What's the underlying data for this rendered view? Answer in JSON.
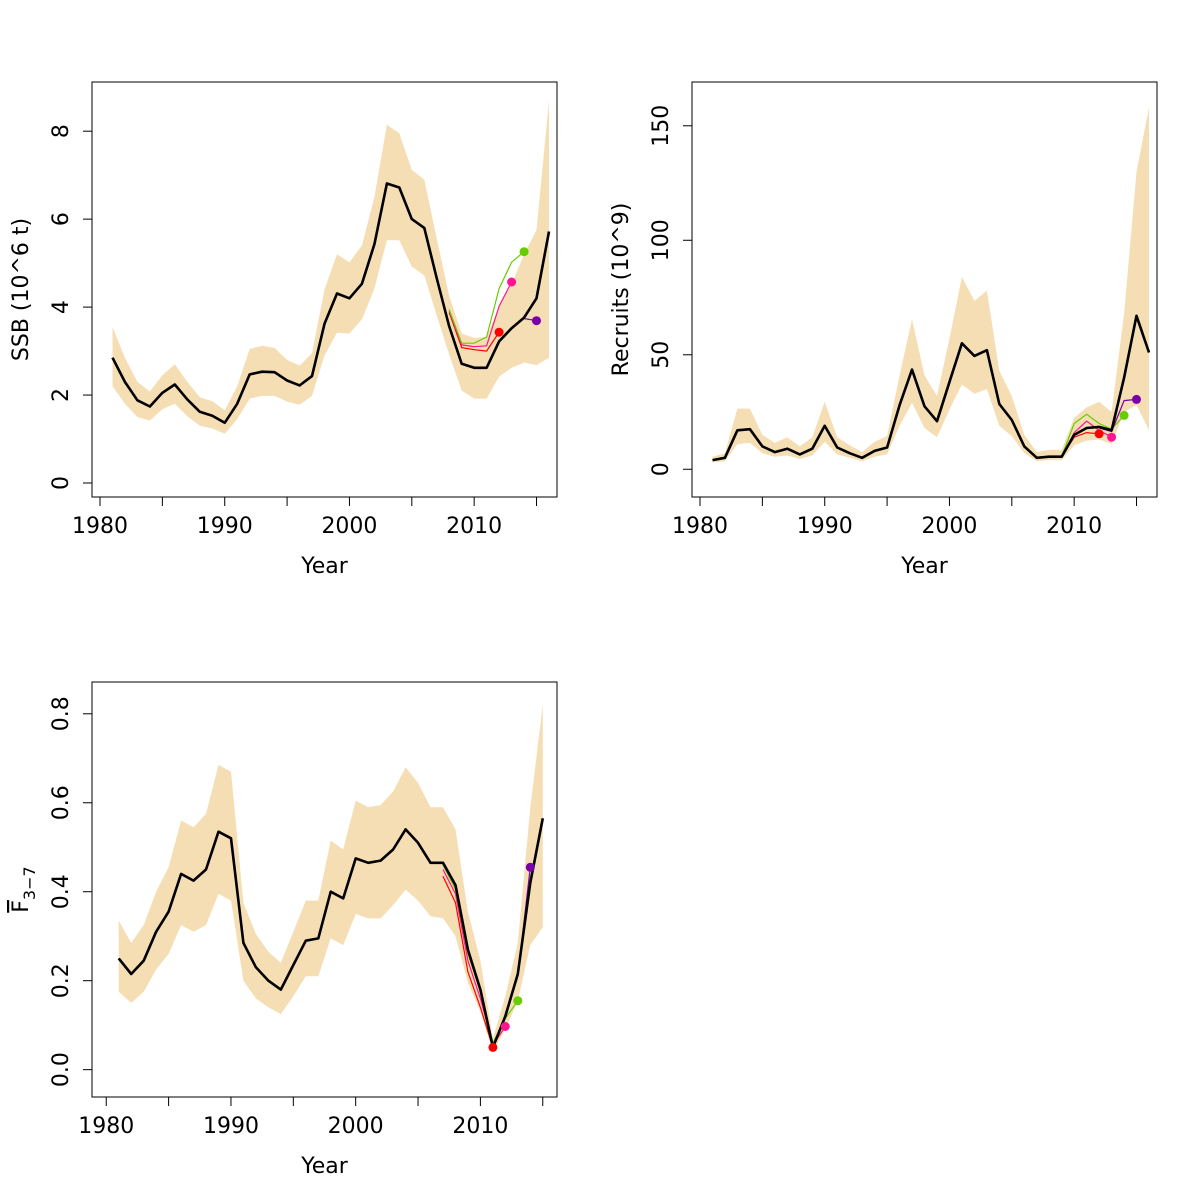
{
  "colors": {
    "band": "#f5deb3",
    "final": "#000000",
    "retro": [
      "#ff0000",
      "#ff1493",
      "#66cd00",
      "#7a00aa"
    ],
    "retro_names": [
      "red",
      "deeppink",
      "chartreuse",
      "purple"
    ]
  },
  "chart_data": [
    {
      "type": "line",
      "ylabel": "SSB (10^6 t)",
      "xlabel": "Year",
      "xlim": [
        1980,
        2016
      ],
      "ylim": [
        0,
        8.8
      ],
      "xticks": [
        1980,
        1990,
        2000,
        2010
      ],
      "yticks": [
        0,
        2,
        4,
        6,
        8
      ],
      "grid": false,
      "legend": "none",
      "x": [
        1981,
        1982,
        1983,
        1984,
        1985,
        1986,
        1987,
        1988,
        1989,
        1990,
        1991,
        1992,
        1993,
        1994,
        1995,
        1996,
        1997,
        1998,
        1999,
        2000,
        2001,
        2002,
        2003,
        2004,
        2005,
        2006,
        2007,
        2008,
        2009,
        2010,
        2011,
        2012,
        2013,
        2014,
        2015,
        2016
      ],
      "final": [
        2.85,
        2.3,
        1.88,
        1.74,
        2.05,
        2.24,
        1.9,
        1.62,
        1.53,
        1.37,
        1.8,
        2.47,
        2.53,
        2.52,
        2.33,
        2.22,
        2.43,
        3.62,
        4.31,
        4.2,
        4.53,
        5.43,
        6.81,
        6.72,
        6.0,
        5.8,
        4.65,
        3.56,
        2.71,
        2.62,
        2.62,
        3.22,
        3.52,
        3.76,
        4.2,
        5.72
      ],
      "band_lower": [
        2.2,
        1.8,
        1.5,
        1.42,
        1.68,
        1.8,
        1.52,
        1.3,
        1.24,
        1.12,
        1.45,
        1.92,
        1.98,
        1.98,
        1.85,
        1.78,
        1.98,
        2.9,
        3.42,
        3.4,
        3.72,
        4.42,
        5.52,
        5.52,
        4.92,
        4.72,
        3.8,
        2.92,
        2.1,
        1.92,
        1.92,
        2.42,
        2.62,
        2.74,
        2.68,
        2.85
      ],
      "band_upper": [
        3.55,
        2.85,
        2.3,
        2.08,
        2.45,
        2.7,
        2.3,
        1.95,
        1.86,
        1.65,
        2.2,
        3.05,
        3.12,
        3.07,
        2.8,
        2.67,
        2.95,
        4.4,
        5.2,
        5.02,
        5.4,
        6.5,
        8.15,
        7.95,
        7.12,
        6.9,
        5.55,
        4.25,
        3.4,
        3.3,
        3.32,
        4.02,
        4.52,
        5.2,
        5.75,
        8.7
      ],
      "retro_runs": [
        {
          "x": [
            2008,
            2009,
            2010,
            2011,
            2012
          ],
          "y": [
            3.88,
            3.08,
            3.03,
            3.0,
            3.43
          ],
          "end_marker": true
        },
        {
          "x": [
            2008,
            2009,
            2010,
            2011,
            2012,
            2013
          ],
          "y": [
            3.92,
            3.14,
            3.1,
            3.12,
            4.02,
            4.57
          ],
          "end_marker": true
        },
        {
          "x": [
            2008,
            2009,
            2010,
            2011,
            2012,
            2013,
            2014
          ],
          "y": [
            3.94,
            3.18,
            3.18,
            3.32,
            4.42,
            5.02,
            5.26
          ],
          "end_marker": true
        },
        {
          "x": [
            2013,
            2014,
            2015
          ],
          "y": [
            3.53,
            3.74,
            3.69
          ],
          "end_marker": true
        }
      ]
    },
    {
      "type": "line",
      "ylabel": "Recruits (10^9)",
      "xlabel": "Year",
      "xlim": [
        1980,
        2016
      ],
      "ylim": [
        -6,
        163
      ],
      "xticks": [
        1980,
        1990,
        2000,
        2010
      ],
      "yticks": [
        0,
        50,
        100,
        150
      ],
      "grid": false,
      "legend": "none",
      "x": [
        1981,
        1982,
        1983,
        1984,
        1985,
        1986,
        1987,
        1988,
        1989,
        1990,
        1991,
        1992,
        1993,
        1994,
        1995,
        1996,
        1997,
        1998,
        1999,
        2000,
        2001,
        2002,
        2003,
        2004,
        2005,
        2006,
        2007,
        2008,
        2009,
        2010,
        2011,
        2012,
        2013,
        2014,
        2015,
        2016
      ],
      "final": [
        4.0,
        5.0,
        17.0,
        17.5,
        10.0,
        7.5,
        9.0,
        6.5,
        9.0,
        19.0,
        9.5,
        7.0,
        5.0,
        8.0,
        9.5,
        28.0,
        43.5,
        27.5,
        21.0,
        38.0,
        55.0,
        49.5,
        52.0,
        28.5,
        21.5,
        10.0,
        5.0,
        5.5,
        5.5,
        15.0,
        18.0,
        18.5,
        17.0,
        40.0,
        67.0,
        51.0
      ],
      "band_lower": [
        3.0,
        3.5,
        11.0,
        11.5,
        7.0,
        5.5,
        6.0,
        4.5,
        6.0,
        12.0,
        6.5,
        5.0,
        3.5,
        5.5,
        6.5,
        19.0,
        29.0,
        18.0,
        14.0,
        26.0,
        37.0,
        33.0,
        35.0,
        19.0,
        14.5,
        7.0,
        3.5,
        4.0,
        4.0,
        10.5,
        12.5,
        13.0,
        11.0,
        25.0,
        28.0,
        17.0
      ],
      "band_upper": [
        5.5,
        7.0,
        26.5,
        26.5,
        15.0,
        11.5,
        14.0,
        10.0,
        14.0,
        29.5,
        14.0,
        10.5,
        7.5,
        12.0,
        14.5,
        41.0,
        65.5,
        41.0,
        32.0,
        57.0,
        84.0,
        73.5,
        78.0,
        43.0,
        32.0,
        15.0,
        7.5,
        8.5,
        8.5,
        22.5,
        27.0,
        29.5,
        25.0,
        68.0,
        130.0,
        158.0
      ],
      "retro_runs": [
        {
          "x": [
            2009,
            2010,
            2011,
            2012
          ],
          "y": [
            5.5,
            14.0,
            16.0,
            15.5
          ],
          "end_marker": true
        },
        {
          "x": [
            2009,
            2010,
            2011,
            2012,
            2013
          ],
          "y": [
            5.5,
            16.0,
            21.0,
            17.0,
            14.0
          ],
          "end_marker": true
        },
        {
          "x": [
            2009,
            2010,
            2011,
            2012,
            2013,
            2014
          ],
          "y": [
            5.6,
            20.0,
            24.0,
            20.0,
            17.5,
            23.5
          ],
          "end_marker": true
        },
        {
          "x": [
            2012,
            2013,
            2014,
            2015
          ],
          "y": [
            18.0,
            16.5,
            30.0,
            30.5
          ],
          "end_marker": true
        }
      ]
    },
    {
      "type": "line",
      "ylabel": "F",
      "ylabel_sub": "3−7",
      "xlabel": "Year",
      "xlim": [
        1980,
        2015
      ],
      "ylim": [
        -0.03,
        0.84
      ],
      "xticks": [
        1980,
        1990,
        2000,
        2010
      ],
      "yticks": [
        0.0,
        0.2,
        0.4,
        0.6,
        0.8
      ],
      "ytick_labels": [
        "0.0",
        "0.2",
        "0.4",
        "0.6",
        "0.8"
      ],
      "grid": false,
      "legend": "none",
      "x": [
        1981,
        1982,
        1983,
        1984,
        1985,
        1986,
        1987,
        1988,
        1989,
        1990,
        1991,
        1992,
        1993,
        1994,
        1995,
        1996,
        1997,
        1998,
        1999,
        2000,
        2001,
        2002,
        2003,
        2004,
        2005,
        2006,
        2007,
        2008,
        2009,
        2010,
        2011,
        2012,
        2013,
        2014,
        2015
      ],
      "final": [
        0.25,
        0.215,
        0.245,
        0.31,
        0.355,
        0.44,
        0.425,
        0.45,
        0.535,
        0.52,
        0.285,
        0.23,
        0.2,
        0.18,
        0.235,
        0.29,
        0.295,
        0.4,
        0.385,
        0.475,
        0.465,
        0.47,
        0.495,
        0.54,
        0.51,
        0.465,
        0.465,
        0.415,
        0.27,
        0.18,
        0.05,
        0.12,
        0.215,
        0.42,
        0.565
      ],
      "band_lower": [
        0.175,
        0.15,
        0.175,
        0.225,
        0.26,
        0.325,
        0.31,
        0.325,
        0.395,
        0.38,
        0.2,
        0.16,
        0.14,
        0.125,
        0.165,
        0.21,
        0.21,
        0.295,
        0.28,
        0.35,
        0.34,
        0.34,
        0.37,
        0.405,
        0.38,
        0.345,
        0.34,
        0.3,
        0.195,
        0.13,
        0.04,
        0.09,
        0.155,
        0.28,
        0.32
      ],
      "band_upper": [
        0.335,
        0.285,
        0.325,
        0.4,
        0.455,
        0.56,
        0.545,
        0.575,
        0.685,
        0.67,
        0.375,
        0.305,
        0.265,
        0.24,
        0.31,
        0.38,
        0.38,
        0.515,
        0.495,
        0.605,
        0.59,
        0.595,
        0.625,
        0.68,
        0.645,
        0.59,
        0.59,
        0.54,
        0.355,
        0.245,
        0.07,
        0.165,
        0.285,
        0.59,
        0.82
      ],
      "retro_runs": [
        {
          "x": [
            2007,
            2008,
            2009,
            2010,
            2011
          ],
          "y": [
            0.435,
            0.375,
            0.22,
            0.14,
            0.05
          ],
          "end_marker": true
        },
        {
          "x": [
            2007,
            2008,
            2009,
            2010,
            2011,
            2012
          ],
          "y": [
            0.45,
            0.395,
            0.245,
            0.16,
            0.055,
            0.097
          ],
          "end_marker": true
        },
        {
          "x": [
            2007,
            2008,
            2009,
            2010,
            2011,
            2012,
            2013
          ],
          "y": [
            0.46,
            0.405,
            0.26,
            0.175,
            0.06,
            0.115,
            0.155
          ],
          "end_marker": true
        },
        {
          "x": [
            2012,
            2013,
            2014
          ],
          "y": [
            0.12,
            0.21,
            0.455
          ],
          "end_marker": true
        }
      ]
    }
  ]
}
